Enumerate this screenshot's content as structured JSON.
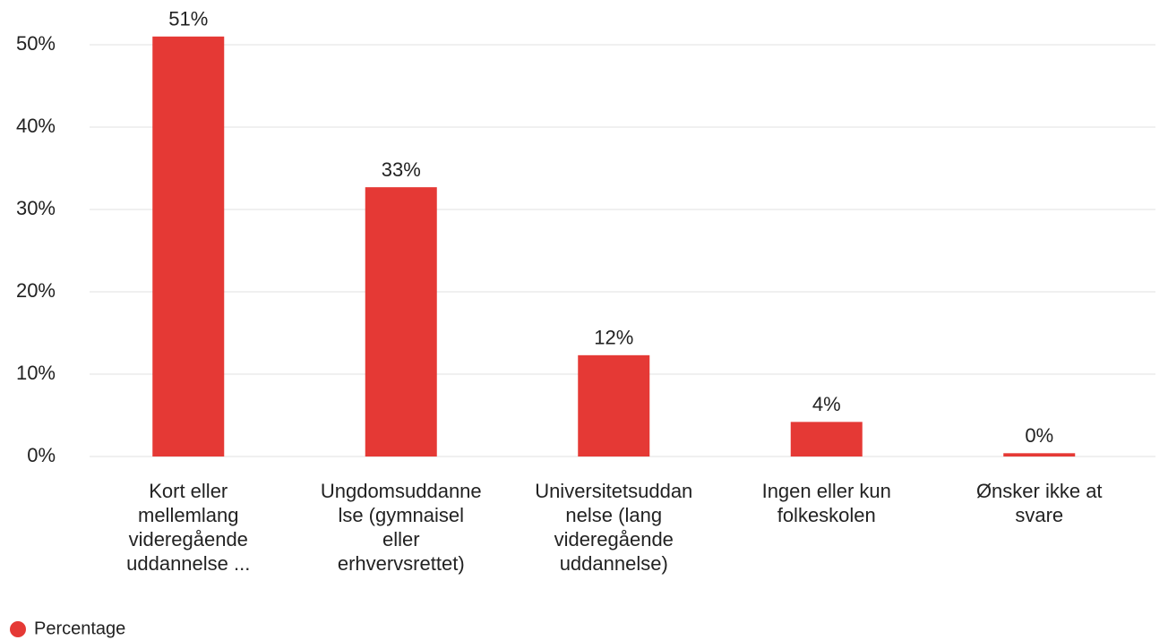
{
  "chart_data": {
    "type": "bar",
    "categories": [
      "Kort eller mellemlang videregående uddannelse ...",
      "Ungdomsuddanne lse (gymnaisel eller erhvervsrettet)",
      "Universitetsuddan nelse (lang videregående uddannelse)",
      "Ingen eller kun folkeskolen",
      "Ønsker ikke at svare"
    ],
    "series": [
      {
        "name": "Percentage",
        "color": "#e53935",
        "values": [
          51,
          32.7,
          12.3,
          4.2,
          0.4
        ],
        "value_labels": [
          "51%",
          "33%",
          "12%",
          "4%",
          "0%"
        ]
      }
    ],
    "ylim": [
      0,
      50
    ],
    "yticks": [
      {
        "value": 0,
        "label": "0%"
      },
      {
        "value": 10,
        "label": "10%"
      },
      {
        "value": 20,
        "label": "20%"
      },
      {
        "value": 30,
        "label": "30%"
      },
      {
        "value": 40,
        "label": "40%"
      },
      {
        "value": 50,
        "label": "50%"
      }
    ],
    "grid": true,
    "legend": "bottom-left"
  }
}
